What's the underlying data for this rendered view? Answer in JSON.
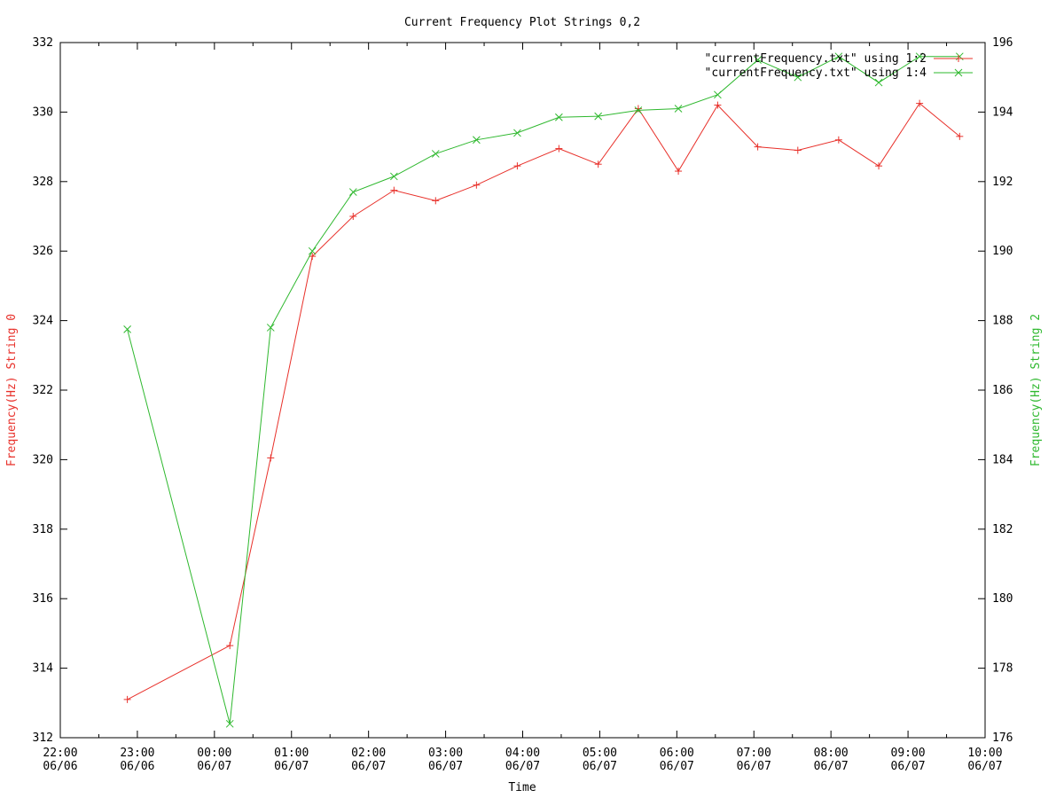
{
  "chart_data": {
    "type": "line",
    "title": "Current Frequency Plot Strings 0,2",
    "xlabel": "Time",
    "ylabel_left": "Frequency(Hz) String 0",
    "ylabel_right": "Frequency(Hz) String 2",
    "xlim_hours": [
      22,
      34
    ],
    "ylim_left": [
      312,
      332
    ],
    "ylim_right": [
      176,
      196
    ],
    "y_ticks_left": [
      "312",
      "314",
      "316",
      "318",
      "320",
      "322",
      "324",
      "326",
      "328",
      "330",
      "332"
    ],
    "y_ticks_right": [
      "176",
      "178",
      "180",
      "182",
      "184",
      "186",
      "188",
      "190",
      "192",
      "194",
      "196"
    ],
    "x_ticks": [
      {
        "time": "22:00",
        "date": "06/06"
      },
      {
        "time": "23:00",
        "date": "06/06"
      },
      {
        "time": "00:00",
        "date": "06/07"
      },
      {
        "time": "01:00",
        "date": "06/07"
      },
      {
        "time": "02:00",
        "date": "06/07"
      },
      {
        "time": "03:00",
        "date": "06/07"
      },
      {
        "time": "04:00",
        "date": "06/07"
      },
      {
        "time": "05:00",
        "date": "06/07"
      },
      {
        "time": "06:00",
        "date": "06/07"
      },
      {
        "time": "07:00",
        "date": "06/07"
      },
      {
        "time": "08:00",
        "date": "06/07"
      },
      {
        "time": "09:00",
        "date": "06/07"
      },
      {
        "time": "10:00",
        "date": "06/07"
      }
    ],
    "grid": false,
    "legend_position": "top-right",
    "series": [
      {
        "name": "\"currentFrequency.txt\" using 1:2",
        "axis": "left",
        "marker": "+",
        "color": "#e8302a",
        "x": [
          22.87,
          24.2,
          24.73,
          25.27,
          25.8,
          26.33,
          26.87,
          27.4,
          27.93,
          28.47,
          28.98,
          29.5,
          30.02,
          30.53,
          31.05,
          31.57,
          32.1,
          32.62,
          33.15,
          33.67
        ],
        "y": [
          313.1,
          314.65,
          320.05,
          325.85,
          327.0,
          327.75,
          327.45,
          327.9,
          328.45,
          328.95,
          328.5,
          330.1,
          328.3,
          330.2,
          329.0,
          328.9,
          329.2,
          328.45,
          330.25,
          329.3
        ]
      },
      {
        "name": "\"currentFrequency.txt\" using 1:4",
        "axis": "right",
        "marker": "x",
        "color": "#2eb82e",
        "x": [
          22.87,
          24.2,
          24.73,
          25.27,
          25.8,
          26.33,
          26.87,
          27.4,
          27.93,
          28.47,
          28.98,
          29.5,
          30.02,
          30.53,
          31.05,
          31.57,
          32.1,
          32.62,
          33.15,
          33.67
        ],
        "y": [
          187.75,
          176.4,
          187.8,
          190.0,
          191.7,
          192.15,
          192.8,
          193.2,
          193.4,
          193.85,
          193.88,
          194.05,
          194.1,
          194.5,
          195.5,
          195.0,
          195.6,
          194.85,
          195.6,
          195.6
        ]
      }
    ]
  }
}
